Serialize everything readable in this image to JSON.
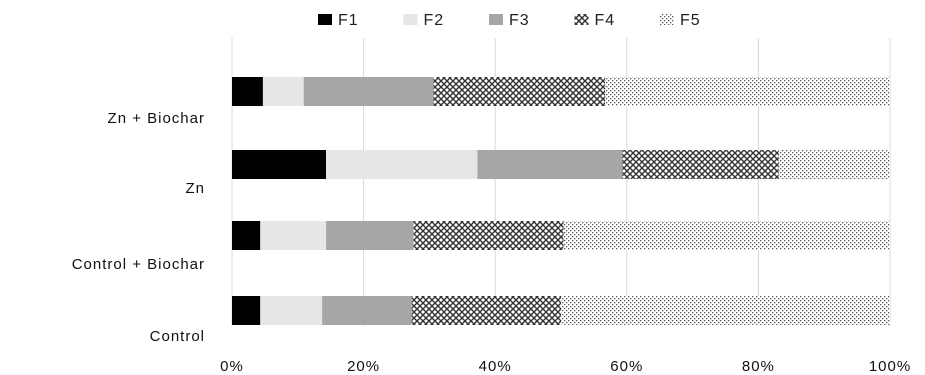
{
  "chart_data": {
    "type": "bar",
    "orientation": "horizontal",
    "stacked": "percent",
    "categories": [
      "Zn + Biochar",
      "Zn",
      "Control + Biochar",
      "Control"
    ],
    "series": [
      {
        "name": "F1",
        "color": "#000000",
        "pattern": "solid",
        "values": [
          4.7,
          14.3,
          4.3,
          4.3
        ]
      },
      {
        "name": "F2",
        "color": "#e6e6e6",
        "pattern": "solid",
        "values": [
          6.2,
          23.0,
          10.0,
          9.4
        ]
      },
      {
        "name": "F3",
        "color": "#a6a6a6",
        "pattern": "solid",
        "values": [
          19.7,
          22.0,
          13.3,
          13.6
        ]
      },
      {
        "name": "F4",
        "color": "#4d4d4d",
        "pattern": "cross-hatch",
        "values": [
          26.1,
          23.8,
          22.8,
          22.7
        ]
      },
      {
        "name": "F5",
        "color": "#bfbfbf",
        "pattern": "dots",
        "values": [
          43.3,
          16.9,
          49.6,
          50.0
        ]
      }
    ],
    "xlim": [
      0,
      100
    ],
    "xticks": [
      "0%",
      "20%",
      "40%",
      "60%",
      "80%",
      "100%"
    ],
    "grid": "vertical",
    "legend_position": "top-center",
    "title": "",
    "xlabel": "",
    "ylabel": ""
  }
}
